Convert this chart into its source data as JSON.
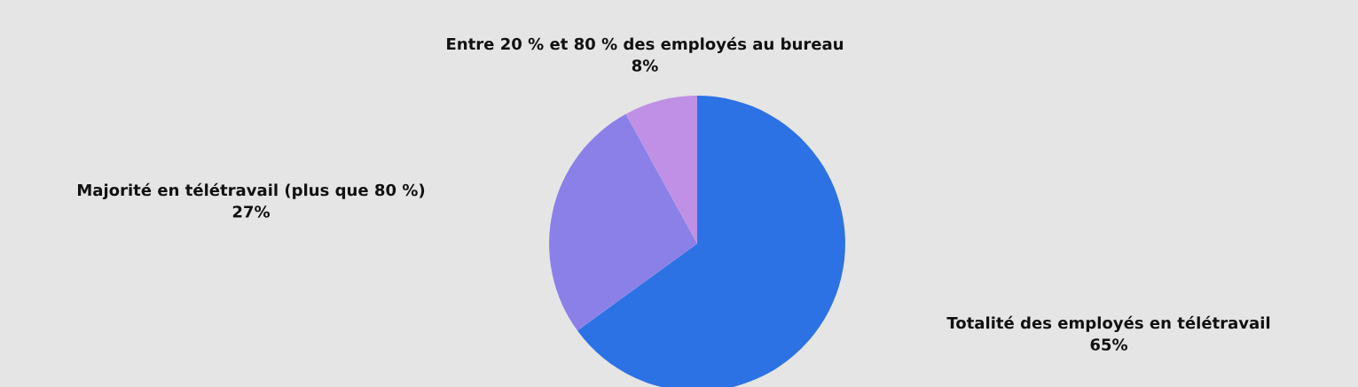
{
  "chart_data": {
    "type": "pie",
    "categories": [
      "Totalité des employés en télétravail",
      "Majorité en télétravail (plus que 80 %)",
      "Entre 20 % et 80 % des employés au bureau"
    ],
    "values": [
      65,
      27,
      8
    ],
    "colors": [
      "#2d72e4",
      "#8a80e8",
      "#bf90e6"
    ],
    "value_labels": [
      "65%",
      "27%",
      "8%"
    ]
  }
}
